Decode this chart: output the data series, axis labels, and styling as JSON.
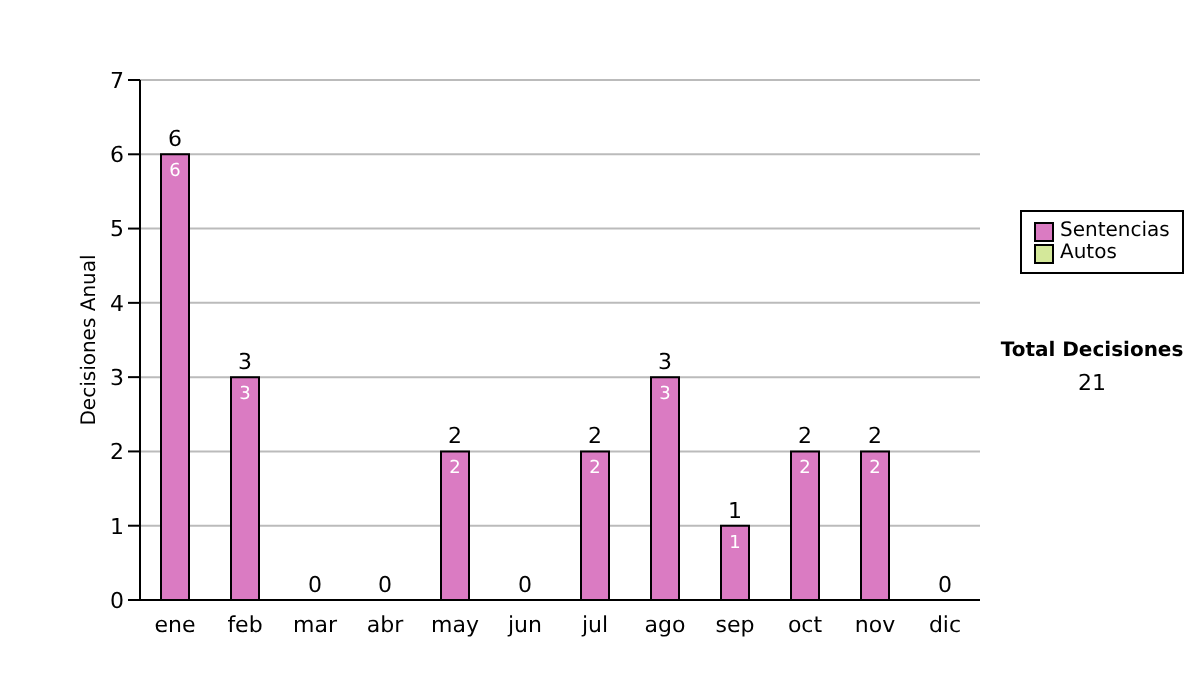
{
  "chart_data": {
    "type": "bar",
    "ylabel": "Decisiones Anual",
    "categories": [
      "ene",
      "feb",
      "mar",
      "abr",
      "may",
      "jun",
      "jul",
      "ago",
      "sep",
      "oct",
      "nov",
      "dic"
    ],
    "series": [
      {
        "name": "Sentencias",
        "color": "#da7bc2",
        "values": [
          6,
          3,
          0,
          0,
          2,
          0,
          2,
          3,
          1,
          2,
          2,
          0
        ],
        "value_labels": [
          "6",
          "3",
          null,
          null,
          "2",
          null,
          "2",
          "3",
          "1",
          "2",
          "2",
          null
        ]
      },
      {
        "name": "Autos",
        "color": "#d4e89a",
        "values": [
          0,
          0,
          0,
          0,
          0,
          0,
          0,
          0,
          0,
          0,
          0,
          0
        ]
      }
    ],
    "stacked": true,
    "totals": [
      "6",
      "3",
      "0",
      "0",
      "2",
      "0",
      "2",
      "3",
      "1",
      "2",
      "2",
      "0"
    ],
    "ylim": [
      0,
      7
    ],
    "yticks": [
      0,
      1,
      2,
      3,
      4,
      5,
      6,
      7
    ],
    "grid": "y",
    "legend": "right",
    "annotations": [
      "Total Decisiones",
      "21"
    ]
  }
}
